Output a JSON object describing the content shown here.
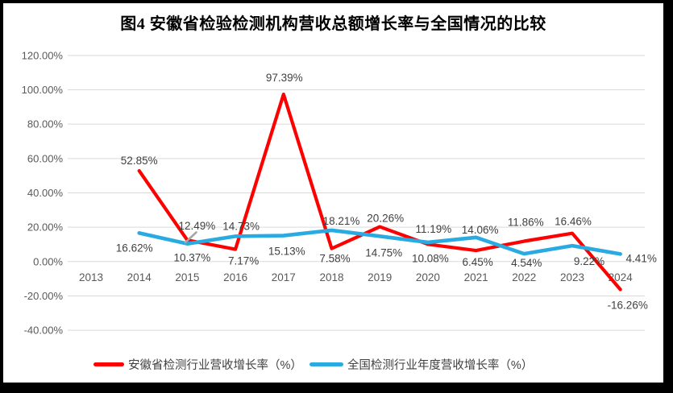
{
  "colors": {
    "anhui_red": "#FE0000",
    "national_blue": "#29ABE2",
    "gridline": "#D9D9D9",
    "axis_text": "#595959",
    "label_text": "#404040",
    "frame": "#000000"
  },
  "chart_data": {
    "type": "line",
    "title": "图4 安徽省检验检测机构营收总额增长率与全国情况的比较",
    "categories": [
      "2013",
      "2014",
      "2015",
      "2016",
      "2017",
      "2018",
      "2019",
      "2020",
      "2021",
      "2022",
      "2023",
      "2024"
    ],
    "series": [
      {
        "name": "安徽省检测行业营收增长率（%）",
        "color": "#FE0000",
        "values": [
          null,
          52.85,
          12.49,
          7.17,
          97.39,
          7.58,
          20.26,
          10.08,
          6.45,
          11.86,
          16.46,
          -16.26
        ],
        "label_offsets": [
          null,
          [
            0,
            -8
          ],
          [
            12,
            -13
          ],
          [
            10,
            19
          ],
          [
            1,
            -16
          ],
          [
            4,
            17
          ],
          [
            7,
            -6
          ],
          [
            3,
            22
          ],
          [
            2,
            19
          ],
          [
            2,
            -19
          ],
          [
            1,
            -10
          ],
          [
            9,
            24
          ]
        ]
      },
      {
        "name": "全国检测行业年度营收增长率（%）",
        "color": "#29ABE2",
        "values": [
          null,
          16.62,
          10.37,
          14.73,
          15.13,
          18.21,
          14.75,
          11.19,
          14.06,
          4.54,
          9.22,
          4.41
        ],
        "label_offsets": [
          null,
          [
            -6,
            23
          ],
          [
            6,
            22
          ],
          [
            7,
            -8
          ],
          [
            4,
            24
          ],
          [
            12,
            -7
          ],
          [
            5,
            25
          ],
          [
            7,
            -12
          ],
          [
            5,
            -5
          ],
          [
            3,
            16
          ],
          [
            21,
            24
          ],
          [
            26,
            10
          ]
        ]
      }
    ],
    "xlabel": "",
    "ylabel": "",
    "ylim": [
      -40,
      120
    ],
    "ytick_step": 20,
    "ytick_suffix": "%",
    "grid": true,
    "legend_position": "bottom",
    "data_labels": true
  }
}
